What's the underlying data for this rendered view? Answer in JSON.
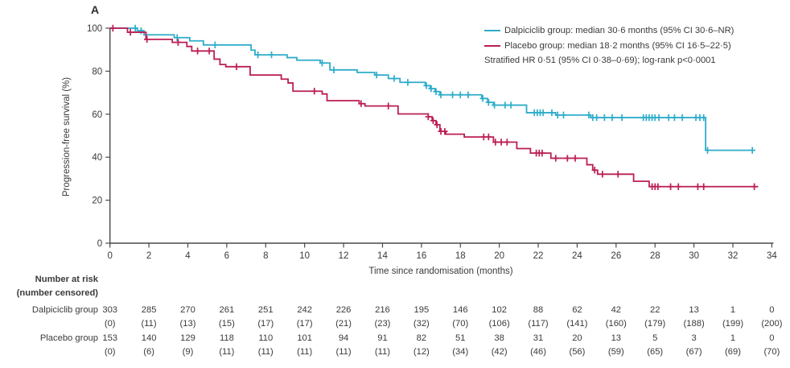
{
  "chart_data": {
    "type": "line",
    "subtype": "kaplan-meier-step",
    "panel_label": "A",
    "xlabel": "Time since randomisation (months)",
    "ylabel": "Progression-free survival (%)",
    "xlim": [
      0,
      34
    ],
    "ylim": [
      0,
      100
    ],
    "xticks": [
      0,
      2,
      4,
      6,
      8,
      10,
      12,
      14,
      16,
      18,
      20,
      22,
      24,
      26,
      28,
      30,
      32,
      34
    ],
    "yticks": [
      0,
      20,
      40,
      60,
      80,
      100
    ],
    "grid": false,
    "legend_position": "top-right",
    "annotation": "Stratified HR 0·51 (95% CI 0·38–0·69); log-rank p<0·0001",
    "axis_color": "#4a4a4a",
    "text_color": "#3a3a3a",
    "series": [
      {
        "name": "Dalpiciclib group",
        "label": "Dalpiciclib group: median 30·6 months (95% CI 30·6–NR)",
        "color": "#2fadca",
        "median_months": "30·6",
        "ci": "30·6–NR",
        "steps": [
          [
            0,
            100
          ],
          [
            1.4,
            98.8
          ],
          [
            1.75,
            96.9
          ],
          [
            3.3,
            95.6
          ],
          [
            4.1,
            94.1
          ],
          [
            4.8,
            92.2
          ],
          [
            7.25,
            89.8
          ],
          [
            7.45,
            87.6
          ],
          [
            9.1,
            86.3
          ],
          [
            9.6,
            85.1
          ],
          [
            10.8,
            83.8
          ],
          [
            11.3,
            80.6
          ],
          [
            12.7,
            79.4
          ],
          [
            13.6,
            78.2
          ],
          [
            14.3,
            76.6
          ],
          [
            14.9,
            74.8
          ],
          [
            16.2,
            73.3
          ],
          [
            16.45,
            71.9
          ],
          [
            16.7,
            70.5
          ],
          [
            16.95,
            69.0
          ],
          [
            19.1,
            67.3
          ],
          [
            19.4,
            65.5
          ],
          [
            19.7,
            64.2
          ],
          [
            21.4,
            60.7
          ],
          [
            22.9,
            59.6
          ],
          [
            24.7,
            58.4
          ],
          [
            30.6,
            43.2
          ]
        ],
        "end_time": 33.05,
        "censor_times": [
          1.3,
          1.6,
          3.45,
          5.4,
          7.6,
          8.3,
          10.9,
          11.5,
          13.7,
          14.6,
          15.3,
          16.25,
          16.5,
          16.75,
          17.0,
          17.6,
          18.0,
          18.4,
          19.15,
          19.45,
          19.75,
          20.3,
          20.6,
          21.8,
          21.95,
          22.1,
          22.25,
          22.7,
          23.0,
          23.3,
          24.6,
          24.8,
          25.0,
          25.4,
          25.8,
          26.3,
          27.4,
          27.55,
          27.7,
          27.85,
          28.0,
          28.2,
          28.7,
          29.0,
          29.4,
          30.1,
          30.3,
          30.5,
          30.7,
          33.0
        ]
      },
      {
        "name": "Placebo group",
        "label": "Placebo group: median 18·2 months (95% CI 16·5–22·5)",
        "color": "#bb1f55",
        "median_months": "18·2",
        "ci": "16·5–22·5",
        "steps": [
          [
            0,
            100
          ],
          [
            0.9,
            98.1
          ],
          [
            1.85,
            94.8
          ],
          [
            3.2,
            93.4
          ],
          [
            3.95,
            91.5
          ],
          [
            4.2,
            89.4
          ],
          [
            5.35,
            85.6
          ],
          [
            5.65,
            83.1
          ],
          [
            5.95,
            82.1
          ],
          [
            7.2,
            78.2
          ],
          [
            8.8,
            76.3
          ],
          [
            9.15,
            74.5
          ],
          [
            9.4,
            70.7
          ],
          [
            10.9,
            69.4
          ],
          [
            11.15,
            66.3
          ],
          [
            12.8,
            64.9
          ],
          [
            13.1,
            63.8
          ],
          [
            14.8,
            60.1
          ],
          [
            16.35,
            58.8
          ],
          [
            16.55,
            57.0
          ],
          [
            16.75,
            55.1
          ],
          [
            16.95,
            52.0
          ],
          [
            17.25,
            50.7
          ],
          [
            18.2,
            49.4
          ],
          [
            19.7,
            47.0
          ],
          [
            20.9,
            44.0
          ],
          [
            21.6,
            41.9
          ],
          [
            22.65,
            39.5
          ],
          [
            24.5,
            36.5
          ],
          [
            24.8,
            34.0
          ],
          [
            25.05,
            32.1
          ],
          [
            26.9,
            28.8
          ],
          [
            27.7,
            26.3
          ]
        ],
        "end_time": 33.3,
        "censor_times": [
          0.15,
          1.05,
          1.9,
          3.5,
          4.5,
          5.1,
          6.5,
          10.5,
          12.9,
          14.3,
          16.35,
          16.6,
          16.8,
          17.0,
          17.2,
          19.2,
          19.45,
          19.8,
          20.1,
          20.4,
          21.9,
          22.05,
          22.2,
          22.9,
          23.5,
          23.9,
          24.9,
          25.3,
          26.1,
          27.85,
          28.0,
          28.15,
          28.8,
          29.2,
          30.2,
          30.5,
          33.1
        ]
      }
    ],
    "risk_table": {
      "header_line1": "Number at risk",
      "header_line2": "(number censored)",
      "times": [
        0,
        2,
        4,
        6,
        8,
        10,
        12,
        14,
        16,
        18,
        20,
        22,
        24,
        26,
        28,
        30,
        32,
        34
      ],
      "rows": [
        {
          "label": "Dalpiciclib group",
          "at_risk": [
            303,
            285,
            270,
            261,
            251,
            242,
            226,
            216,
            195,
            146,
            102,
            88,
            62,
            42,
            22,
            13,
            1,
            0
          ],
          "censored": [
            0,
            11,
            13,
            15,
            17,
            17,
            21,
            23,
            32,
            70,
            106,
            117,
            141,
            160,
            179,
            188,
            199,
            200
          ]
        },
        {
          "label": "Placebo group",
          "at_risk": [
            153,
            140,
            129,
            118,
            110,
            101,
            94,
            91,
            82,
            51,
            38,
            31,
            20,
            13,
            5,
            3,
            1,
            0
          ],
          "censored": [
            0,
            6,
            9,
            11,
            11,
            11,
            11,
            11,
            12,
            34,
            42,
            46,
            56,
            59,
            65,
            67,
            69,
            70
          ]
        }
      ]
    }
  }
}
